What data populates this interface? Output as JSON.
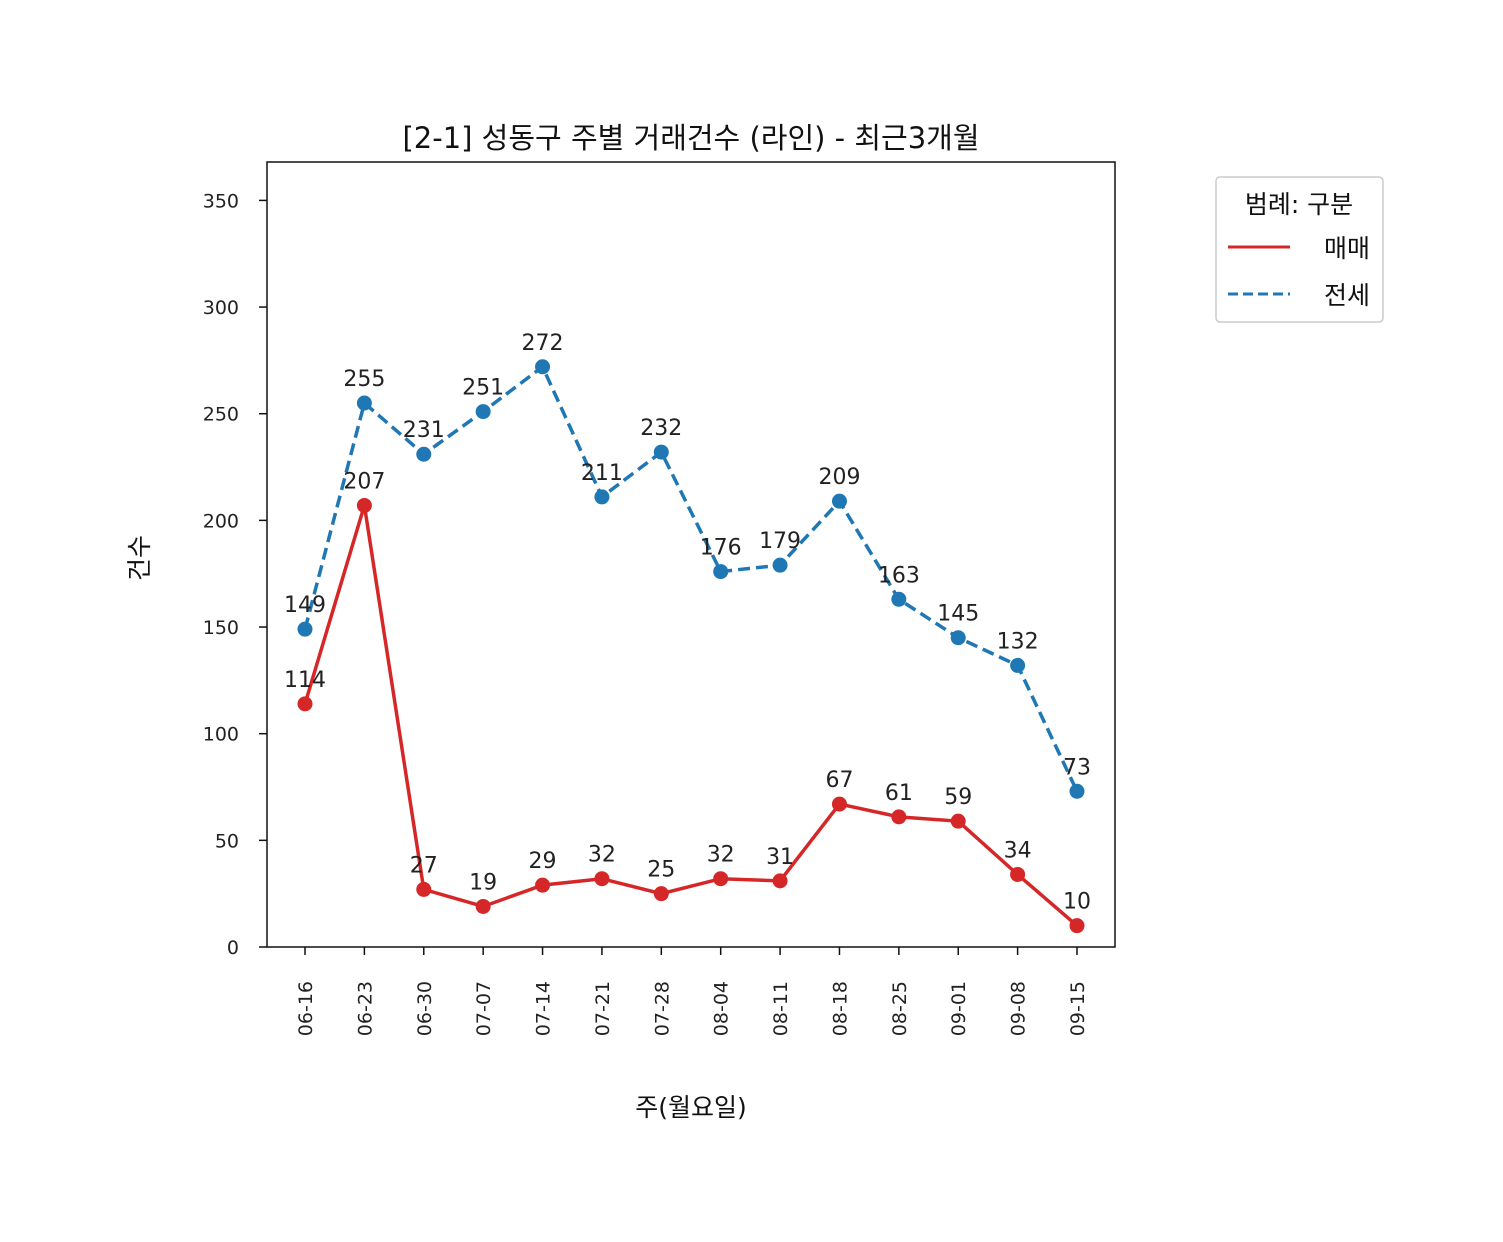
{
  "chart_data": {
    "type": "line",
    "title": "[2-1] 성동구 주별 거래건수 (라인) - 최근3개월",
    "xlabel": "주(월요일)",
    "ylabel": "건수",
    "categories": [
      "06-16",
      "06-23",
      "06-30",
      "07-07",
      "07-14",
      "07-21",
      "07-28",
      "08-04",
      "08-11",
      "08-18",
      "08-25",
      "09-01",
      "09-08",
      "09-15"
    ],
    "ylim": [
      0,
      368
    ],
    "yticks": [
      0,
      50,
      100,
      150,
      200,
      250,
      300,
      350
    ],
    "grid": false,
    "legend": {
      "title": "범례: 구분",
      "placement": "outside-right-top"
    },
    "series": [
      {
        "name": "매매",
        "color": "#d62728",
        "style": "solid",
        "values": [
          114,
          207,
          27,
          19,
          29,
          32,
          25,
          32,
          31,
          67,
          61,
          59,
          34,
          10
        ]
      },
      {
        "name": "전세",
        "color": "#1f77b4",
        "style": "dashed",
        "values": [
          149,
          255,
          231,
          251,
          272,
          211,
          232,
          176,
          179,
          209,
          163,
          145,
          132,
          73
        ]
      }
    ]
  }
}
